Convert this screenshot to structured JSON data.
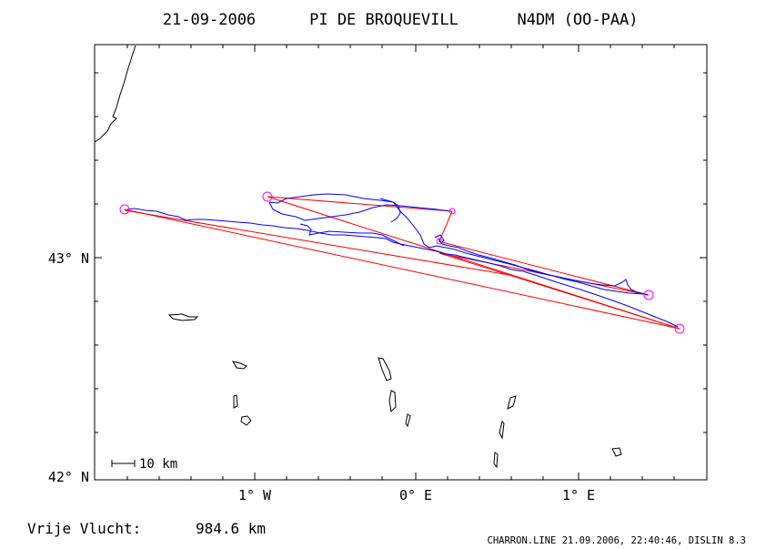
{
  "header": {
    "date": "21-09-2006",
    "pilot": "PI DE BROQUEVILL",
    "aircraft": "N4DM (OO-PAA)"
  },
  "axes": {
    "y_labels": [
      "43° N",
      "42° N"
    ],
    "x_labels": [
      "1° W",
      "0° E",
      "1° E"
    ]
  },
  "scale_label": "10 km",
  "footer": {
    "distance_label": "Vrije Vlucht:",
    "distance_value": "984.6 km",
    "credit": "CHARRON.LINE 21.09.2006, 22:40:46, DISLIN 8.3"
  },
  "colors": {
    "track": "#0000ff",
    "route": "#ff0000",
    "turnpoint": "#ff00ff",
    "frame": "#000000"
  }
}
